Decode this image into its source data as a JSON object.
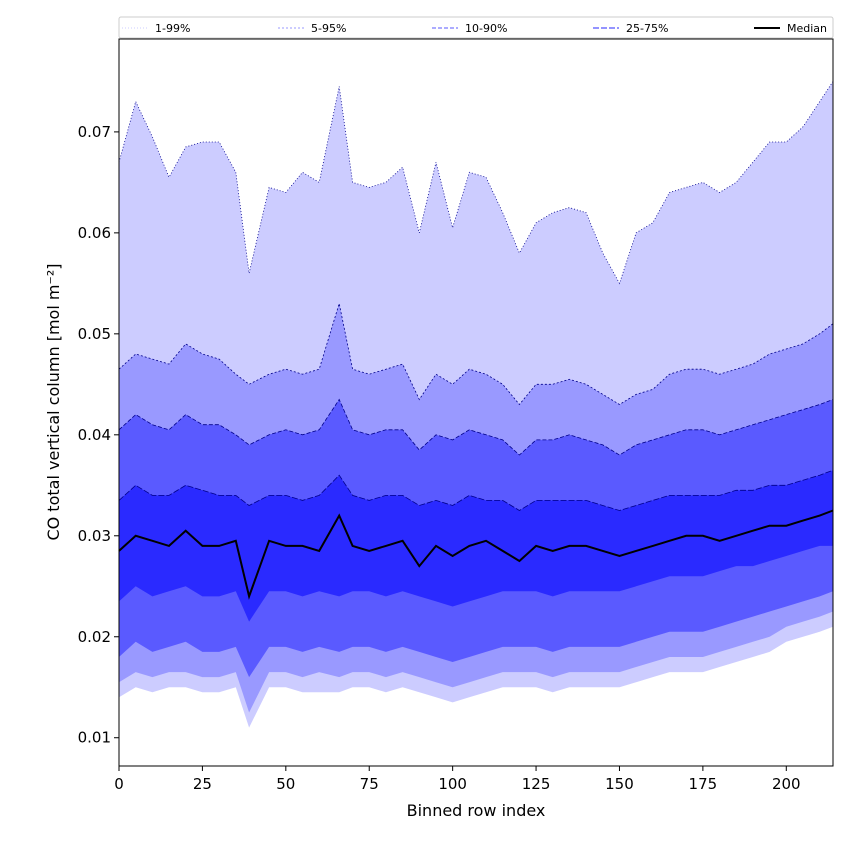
{
  "chart_data": {
    "type": "area",
    "xlabel": "Binned row index",
    "ylabel": "CO total vertical column [mol m⁻²]",
    "xlim": [
      0,
      214
    ],
    "ylim": [
      0.0072,
      0.0792
    ],
    "x_ticks": [
      0,
      25,
      50,
      75,
      100,
      125,
      150,
      175,
      200
    ],
    "y_ticks": [
      0.01,
      0.02,
      0.03,
      0.04,
      0.05,
      0.06,
      0.07
    ],
    "x_tick_labels": [
      "0",
      "25",
      "50",
      "75",
      "100",
      "125",
      "150",
      "175",
      "200"
    ],
    "y_tick_labels": [
      "0.01",
      "0.02",
      "0.03",
      "0.04",
      "0.05",
      "0.06",
      "0.07"
    ],
    "legend": {
      "placement": "top (above plot, spanning width)",
      "entries": [
        "1-99%",
        "5-95%",
        "10-90%",
        "25-75%",
        "Median"
      ]
    },
    "colors": {
      "band_1_99": "#ccccff",
      "band_5_95": "#9999ff",
      "band_10_90": "#5a5aff",
      "band_25_75": "#2a2aff",
      "median_line": "#000000",
      "edge_line": "#00008b"
    },
    "x": [
      0,
      5,
      10,
      15,
      20,
      25,
      30,
      35,
      39,
      45,
      50,
      55,
      60,
      66,
      70,
      75,
      80,
      85,
      90,
      95,
      100,
      105,
      110,
      115,
      120,
      125,
      130,
      135,
      140,
      145,
      150,
      155,
      160,
      165,
      170,
      175,
      180,
      185,
      190,
      195,
      200,
      205,
      210,
      214
    ],
    "series": [
      {
        "name": "1-99%",
        "lower": [
          0.014,
          0.015,
          0.0145,
          0.015,
          0.015,
          0.0145,
          0.0145,
          0.015,
          0.011,
          0.015,
          0.015,
          0.0145,
          0.0145,
          0.0145,
          0.015,
          0.015,
          0.0145,
          0.015,
          0.0145,
          0.014,
          0.0135,
          0.014,
          0.0145,
          0.015,
          0.015,
          0.015,
          0.0145,
          0.015,
          0.015,
          0.015,
          0.015,
          0.0155,
          0.016,
          0.0165,
          0.0165,
          0.0165,
          0.017,
          0.0175,
          0.018,
          0.0185,
          0.0195,
          0.02,
          0.0205,
          0.021
        ],
        "upper": [
          0.067,
          0.073,
          0.0695,
          0.0655,
          0.0685,
          0.069,
          0.069,
          0.066,
          0.056,
          0.0645,
          0.064,
          0.066,
          0.065,
          0.0745,
          0.065,
          0.0645,
          0.065,
          0.0665,
          0.06,
          0.067,
          0.0605,
          0.066,
          0.0655,
          0.062,
          0.058,
          0.061,
          0.062,
          0.0625,
          0.062,
          0.058,
          0.055,
          0.06,
          0.061,
          0.064,
          0.0645,
          0.065,
          0.064,
          0.065,
          0.067,
          0.069,
          0.069,
          0.0705,
          0.073,
          0.075
        ]
      },
      {
        "name": "5-95%",
        "lower": [
          0.0155,
          0.0165,
          0.016,
          0.0165,
          0.0165,
          0.016,
          0.016,
          0.0165,
          0.0125,
          0.0165,
          0.0165,
          0.016,
          0.0165,
          0.016,
          0.0165,
          0.0165,
          0.016,
          0.0165,
          0.016,
          0.0155,
          0.015,
          0.0155,
          0.016,
          0.0165,
          0.0165,
          0.0165,
          0.016,
          0.0165,
          0.0165,
          0.0165,
          0.0165,
          0.017,
          0.0175,
          0.018,
          0.018,
          0.018,
          0.0185,
          0.019,
          0.0195,
          0.02,
          0.021,
          0.0215,
          0.022,
          0.0225
        ],
        "upper": [
          0.0465,
          0.048,
          0.0475,
          0.047,
          0.049,
          0.048,
          0.0475,
          0.046,
          0.045,
          0.046,
          0.0465,
          0.046,
          0.0465,
          0.053,
          0.0465,
          0.046,
          0.0465,
          0.047,
          0.0435,
          0.046,
          0.045,
          0.0465,
          0.046,
          0.045,
          0.043,
          0.045,
          0.045,
          0.0455,
          0.045,
          0.044,
          0.043,
          0.044,
          0.0445,
          0.046,
          0.0465,
          0.0465,
          0.046,
          0.0465,
          0.047,
          0.048,
          0.0485,
          0.049,
          0.05,
          0.051
        ]
      },
      {
        "name": "10-90%",
        "lower": [
          0.018,
          0.0195,
          0.0185,
          0.019,
          0.0195,
          0.0185,
          0.0185,
          0.019,
          0.016,
          0.019,
          0.019,
          0.0185,
          0.019,
          0.0185,
          0.019,
          0.019,
          0.0185,
          0.019,
          0.0185,
          0.018,
          0.0175,
          0.018,
          0.0185,
          0.019,
          0.019,
          0.019,
          0.0185,
          0.019,
          0.019,
          0.019,
          0.019,
          0.0195,
          0.02,
          0.0205,
          0.0205,
          0.0205,
          0.021,
          0.0215,
          0.022,
          0.0225,
          0.023,
          0.0235,
          0.024,
          0.0245
        ],
        "upper": [
          0.0405,
          0.042,
          0.041,
          0.0405,
          0.042,
          0.041,
          0.041,
          0.04,
          0.039,
          0.04,
          0.0405,
          0.04,
          0.0405,
          0.0435,
          0.0405,
          0.04,
          0.0405,
          0.0405,
          0.0385,
          0.04,
          0.0395,
          0.0405,
          0.04,
          0.0395,
          0.038,
          0.0395,
          0.0395,
          0.04,
          0.0395,
          0.039,
          0.038,
          0.039,
          0.0395,
          0.04,
          0.0405,
          0.0405,
          0.04,
          0.0405,
          0.041,
          0.0415,
          0.042,
          0.0425,
          0.043,
          0.0435
        ]
      },
      {
        "name": "25-75%",
        "lower": [
          0.0235,
          0.025,
          0.024,
          0.0245,
          0.025,
          0.024,
          0.024,
          0.0245,
          0.0215,
          0.0245,
          0.0245,
          0.024,
          0.0245,
          0.024,
          0.0245,
          0.0245,
          0.024,
          0.0245,
          0.024,
          0.0235,
          0.023,
          0.0235,
          0.024,
          0.0245,
          0.0245,
          0.0245,
          0.024,
          0.0245,
          0.0245,
          0.0245,
          0.0245,
          0.025,
          0.0255,
          0.026,
          0.026,
          0.026,
          0.0265,
          0.027,
          0.027,
          0.0275,
          0.028,
          0.0285,
          0.029,
          0.029
        ],
        "upper": [
          0.0335,
          0.035,
          0.034,
          0.034,
          0.035,
          0.0345,
          0.034,
          0.034,
          0.033,
          0.034,
          0.034,
          0.0335,
          0.034,
          0.036,
          0.034,
          0.0335,
          0.034,
          0.034,
          0.033,
          0.0335,
          0.033,
          0.034,
          0.0335,
          0.0335,
          0.0325,
          0.0335,
          0.0335,
          0.0335,
          0.0335,
          0.033,
          0.0325,
          0.033,
          0.0335,
          0.034,
          0.034,
          0.034,
          0.034,
          0.0345,
          0.0345,
          0.035,
          0.035,
          0.0355,
          0.036,
          0.0365
        ]
      },
      {
        "name": "Median",
        "values": [
          0.0285,
          0.03,
          0.0295,
          0.029,
          0.0305,
          0.029,
          0.029,
          0.0295,
          0.024,
          0.0295,
          0.029,
          0.029,
          0.0285,
          0.032,
          0.029,
          0.0285,
          0.029,
          0.0295,
          0.027,
          0.029,
          0.028,
          0.029,
          0.0295,
          0.0285,
          0.0275,
          0.029,
          0.0285,
          0.029,
          0.029,
          0.0285,
          0.028,
          0.0285,
          0.029,
          0.0295,
          0.03,
          0.03,
          0.0295,
          0.03,
          0.0305,
          0.031,
          0.031,
          0.0315,
          0.032,
          0.0325
        ]
      }
    ]
  }
}
